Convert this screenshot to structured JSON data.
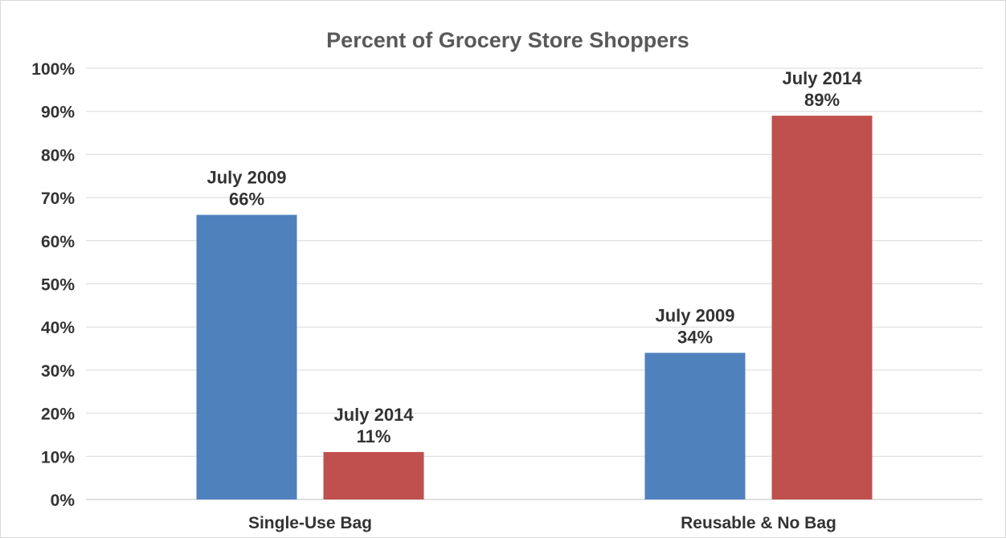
{
  "chart_data": {
    "type": "bar",
    "title": "Percent of Grocery Store Shoppers",
    "xlabel": "",
    "ylabel": "",
    "ylim": [
      0,
      100
    ],
    "y_ticks": [
      "0%",
      "10%",
      "20%",
      "30%",
      "40%",
      "50%",
      "60%",
      "70%",
      "80%",
      "90%",
      "100%"
    ],
    "categories": [
      "Single-Use Bag",
      "Reusable & No Bag"
    ],
    "series": [
      {
        "values": [
          66,
          34
        ],
        "color": "#4f81bd",
        "labels": [
          {
            "period": "July 2009",
            "value": "66%"
          },
          {
            "period": "July 2009",
            "value": "34%"
          }
        ]
      },
      {
        "values": [
          11,
          89
        ],
        "color": "#c0504d",
        "labels": [
          {
            "period": "July 2014",
            "value": "11%"
          },
          {
            "period": "July 2014",
            "value": "89%"
          }
        ]
      }
    ],
    "grid": true,
    "legend": "none"
  }
}
